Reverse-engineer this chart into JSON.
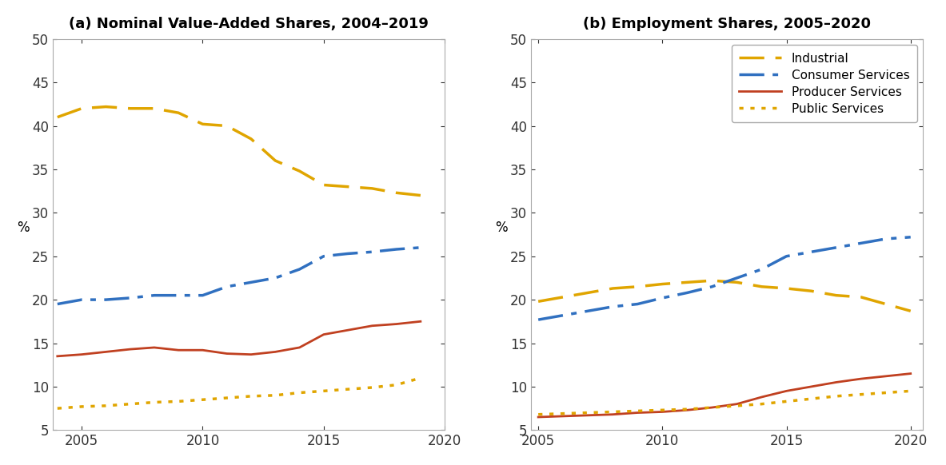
{
  "panel_a": {
    "title": "(a) Nominal Value-Added Shares, 2004–2019",
    "years": [
      2004,
      2005,
      2006,
      2007,
      2008,
      2009,
      2010,
      2011,
      2012,
      2013,
      2014,
      2015,
      2016,
      2017,
      2018,
      2019
    ],
    "industrial": [
      41.0,
      42.0,
      42.2,
      42.0,
      42.0,
      41.5,
      40.2,
      40.0,
      38.5,
      36.0,
      34.8,
      33.2,
      33.0,
      32.8,
      32.3,
      32.0
    ],
    "consumer_services": [
      19.5,
      20.0,
      20.0,
      20.2,
      20.5,
      20.5,
      20.5,
      21.5,
      22.0,
      22.5,
      23.5,
      25.0,
      25.3,
      25.5,
      25.8,
      26.0
    ],
    "producer_services": [
      13.5,
      13.7,
      14.0,
      14.3,
      14.5,
      14.2,
      14.2,
      13.8,
      13.7,
      14.0,
      14.5,
      16.0,
      16.5,
      17.0,
      17.2,
      17.5
    ],
    "public_services": [
      7.5,
      7.7,
      7.8,
      8.0,
      8.2,
      8.3,
      8.5,
      8.7,
      8.9,
      9.0,
      9.3,
      9.5,
      9.7,
      9.9,
      10.2,
      11.0
    ],
    "ylim": [
      5,
      50
    ],
    "xlim": [
      2003.8,
      2019.5
    ],
    "yticks": [
      5,
      10,
      15,
      20,
      25,
      30,
      35,
      40,
      45,
      50
    ],
    "xticks": [
      2005,
      2010,
      2015,
      2020
    ]
  },
  "panel_b": {
    "title": "(b) Employment Shares, 2005–2020",
    "years": [
      2005,
      2006,
      2007,
      2008,
      2009,
      2010,
      2011,
      2012,
      2013,
      2014,
      2015,
      2016,
      2017,
      2018,
      2019,
      2020
    ],
    "industrial": [
      19.8,
      20.3,
      20.8,
      21.3,
      21.5,
      21.8,
      22.0,
      22.2,
      22.0,
      21.5,
      21.3,
      21.0,
      20.5,
      20.3,
      19.5,
      18.7
    ],
    "consumer_services": [
      17.7,
      18.2,
      18.7,
      19.2,
      19.5,
      20.2,
      20.8,
      21.5,
      22.5,
      23.5,
      25.0,
      25.5,
      26.0,
      26.5,
      27.0,
      27.2
    ],
    "producer_services": [
      6.5,
      6.6,
      6.7,
      6.8,
      7.0,
      7.1,
      7.3,
      7.6,
      8.0,
      8.8,
      9.5,
      10.0,
      10.5,
      10.9,
      11.2,
      11.5
    ],
    "public_services": [
      6.8,
      6.9,
      7.0,
      7.1,
      7.2,
      7.3,
      7.4,
      7.6,
      7.8,
      8.0,
      8.3,
      8.6,
      8.9,
      9.1,
      9.3,
      9.5
    ],
    "ylim": [
      5,
      50
    ],
    "xlim": [
      2004.7,
      2020.5
    ],
    "yticks": [
      5,
      10,
      15,
      20,
      25,
      30,
      35,
      40,
      45,
      50
    ],
    "xticks": [
      2005,
      2010,
      2015,
      2020
    ]
  },
  "colors": {
    "industrial": "#E0A500",
    "consumer_services": "#3070C0",
    "producer_services": "#C04020",
    "public_services": "#E0A500"
  },
  "legend_labels": [
    "Industrial",
    "Consumer Services",
    "Producer Services",
    "Public Services"
  ],
  "ylabel": "%",
  "spine_color": "#aaaaaa",
  "tick_color": "#333333",
  "background_color": "#ffffff",
  "title_fontsize": 13,
  "axis_fontsize": 12,
  "legend_fontsize": 11
}
